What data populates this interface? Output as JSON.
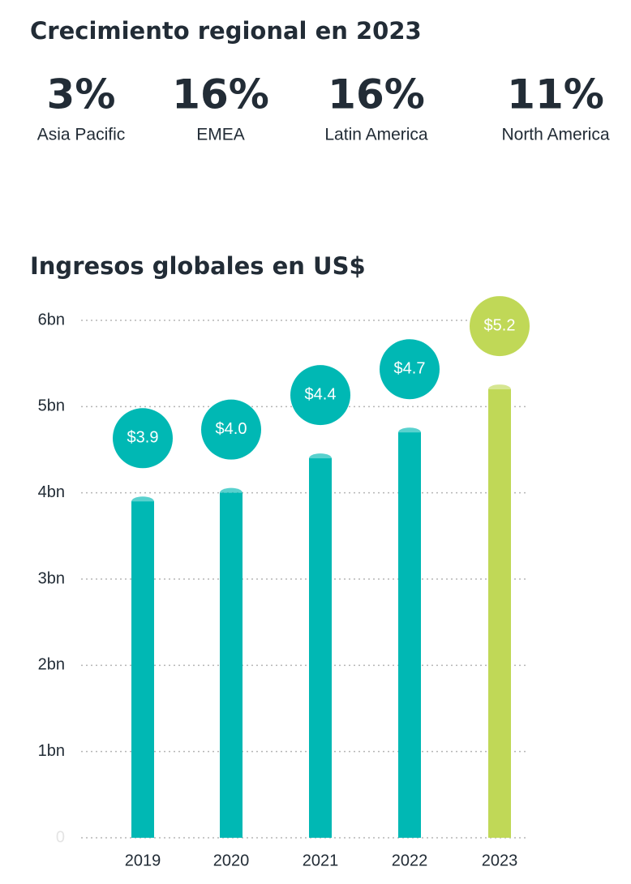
{
  "header": {
    "title": "Crecimiento regional en 2023"
  },
  "stats": [
    {
      "value": "3%",
      "label": "Asia Pacific"
    },
    {
      "value": "16%",
      "label": "EMEA"
    },
    {
      "value": "16%",
      "label": "Latin America"
    },
    {
      "value": "11%",
      "label": "North America"
    }
  ],
  "chart_data": {
    "type": "bar",
    "title": "Ingresos globales en US$",
    "categories": [
      "2019",
      "2020",
      "2021",
      "2022",
      "2023"
    ],
    "values": [
      3.9,
      4.0,
      4.4,
      4.7,
      5.2
    ],
    "value_labels": [
      "$3.9",
      "$4.0",
      "$4.4",
      "$4.7",
      "$5.2"
    ],
    "colors": [
      "#00b8b4",
      "#00b8b4",
      "#00b8b4",
      "#00b8b4",
      "#c0d857"
    ],
    "ylim": [
      0,
      6
    ],
    "yticks": [
      0,
      {
        "value": 1,
        "label": "1bn"
      },
      {
        "value": 2,
        "label": "2bn"
      },
      {
        "value": 3,
        "label": "3bn"
      },
      {
        "value": 4,
        "label": "4bn"
      },
      {
        "value": 5,
        "label": "5bn"
      },
      {
        "value": 6,
        "label": "6bn"
      }
    ],
    "grid": true
  }
}
